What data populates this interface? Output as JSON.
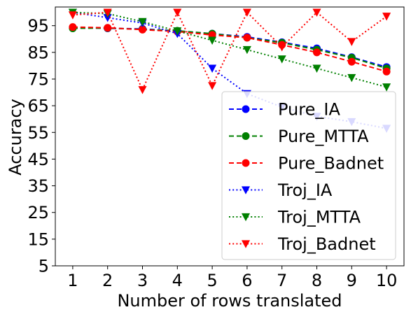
{
  "chart_data": {
    "type": "line",
    "title": "",
    "xlabel": "Number of rows translated",
    "ylabel": "Accuracy",
    "x": [
      1,
      2,
      3,
      4,
      5,
      6,
      7,
      8,
      9,
      10
    ],
    "xlim": [
      0.5,
      10.5
    ],
    "ylim": [
      5,
      102
    ],
    "yticks": [
      5,
      15,
      25,
      35,
      45,
      55,
      65,
      75,
      85,
      95
    ],
    "grid": false,
    "legend_position": "lower-right",
    "series": [
      {
        "name": "Pure_IA",
        "color": "#0000ff",
        "linestyle": "dashed",
        "marker": "circle",
        "values": [
          94.3,
          94.0,
          93.8,
          93.0,
          92.0,
          90.8,
          88.8,
          86.5,
          83.2,
          79.5
        ]
      },
      {
        "name": "Pure_MTTA",
        "color": "#008000",
        "linestyle": "dashed",
        "marker": "circle",
        "values": [
          94.0,
          94.1,
          93.6,
          93.1,
          92.0,
          90.5,
          88.6,
          86.0,
          83.0,
          79.0
        ]
      },
      {
        "name": "Pure_Badnet",
        "color": "#ff0000",
        "linestyle": "dashed",
        "marker": "circle",
        "values": [
          94.5,
          94.2,
          93.5,
          92.8,
          91.5,
          90.5,
          87.8,
          85.0,
          81.5,
          77.8
        ]
      },
      {
        "name": "Troj_IA",
        "color": "#0000ff",
        "linestyle": "dotted",
        "marker": "triangle-down",
        "values": [
          100.0,
          98.0,
          96.0,
          92.0,
          79.0,
          69.5,
          64.5,
          61.0,
          59.0,
          56.5
        ]
      },
      {
        "name": "Troj_MTTA",
        "color": "#008000",
        "linestyle": "dotted",
        "marker": "triangle-down",
        "values": [
          100.0,
          99.5,
          96.5,
          93.0,
          89.5,
          86.0,
          82.5,
          79.0,
          75.5,
          72.0
        ]
      },
      {
        "name": "Troj_Badnet",
        "color": "#ff0000",
        "linestyle": "dotted",
        "marker": "triangle-down",
        "values": [
          99.0,
          100.0,
          71.0,
          100.0,
          72.5,
          100.0,
          87.0,
          100.0,
          89.0,
          98.5
        ]
      }
    ]
  }
}
